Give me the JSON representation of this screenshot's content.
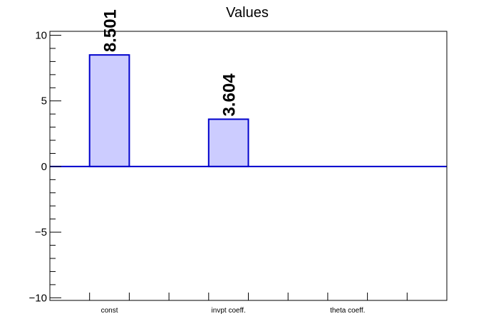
{
  "chart_data": {
    "type": "bar",
    "title": "Values",
    "categories": [
      "const",
      "invpt coeff.",
      "theta coeff."
    ],
    "series": [
      {
        "values": [
          8.501,
          3.604,
          0
        ]
      }
    ],
    "data_labels": [
      "8.501",
      "3.604",
      ""
    ],
    "ylim": [
      -10.2,
      10.3
    ],
    "y_tick_labels": [
      "10",
      "5",
      "0",
      "−5",
      "−10"
    ],
    "y_ticks": [
      10,
      5,
      0,
      -5,
      -10
    ],
    "grid": false,
    "colors": {
      "bar_fill": "#ccccff",
      "bar_stroke": "#0000cc",
      "axis": "#000000"
    }
  }
}
